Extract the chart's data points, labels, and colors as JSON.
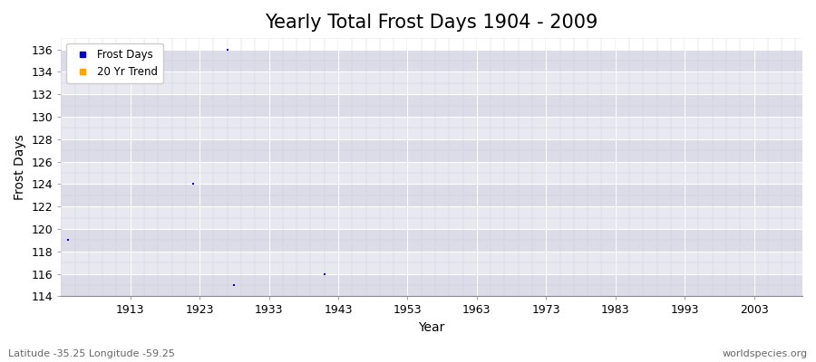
{
  "title": "Yearly Total Frost Days 1904 - 2009",
  "xlabel": "Year",
  "ylabel": "Frost Days",
  "xlim": [
    1903,
    2010
  ],
  "ylim": [
    114,
    137
  ],
  "yticks": [
    114,
    116,
    118,
    120,
    122,
    124,
    126,
    128,
    130,
    132,
    134,
    136
  ],
  "xticks": [
    1913,
    1923,
    1933,
    1943,
    1953,
    1963,
    1973,
    1983,
    1993,
    2003
  ],
  "data_points": [
    [
      1904,
      119
    ],
    [
      1922,
      124
    ],
    [
      1927,
      136
    ],
    [
      1928,
      115
    ],
    [
      1941,
      116
    ]
  ],
  "point_color": "#0000cc",
  "trend_color": "#ffa500",
  "band_colors": [
    "#dcdce8",
    "#e8e8f0"
  ],
  "grid_color": "#ffffff",
  "grid_minor_color": "#ccccdd",
  "title_fontsize": 15,
  "label_fontsize": 10,
  "tick_fontsize": 9,
  "footer_left": "Latitude -35.25 Longitude -59.25",
  "footer_right": "worldspecies.org",
  "legend_labels": [
    "Frost Days",
    "20 Yr Trend"
  ]
}
